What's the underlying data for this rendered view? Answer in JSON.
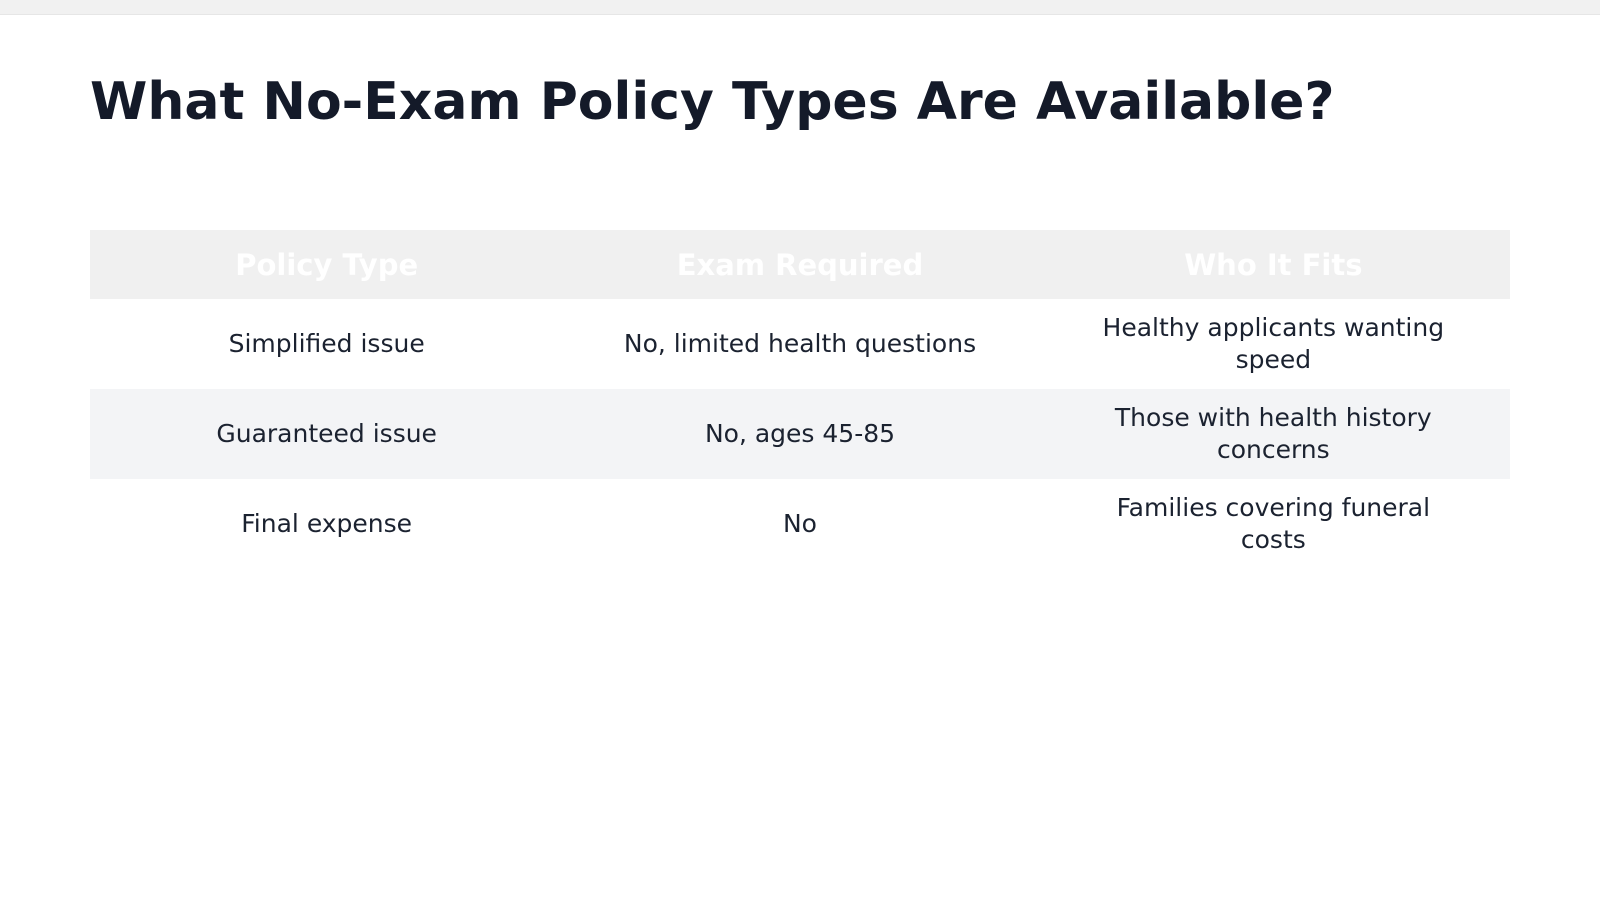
{
  "slide": {
    "title": "What No-Exam Policy Types Are Available?"
  },
  "table": {
    "headers": [
      "Policy Type",
      "Exam Required",
      "Who It Fits"
    ],
    "rows": [
      [
        "Simplified issue",
        "No, limited health questions",
        "Healthy applicants wanting speed"
      ],
      [
        "Guaranteed issue",
        "No, ages 45-85",
        "Those with health history concerns"
      ],
      [
        "Final expense",
        "No",
        "Families covering funeral costs"
      ]
    ],
    "colors": {
      "header_bg": "#f0f0f0",
      "header_text": "#ffffff",
      "alt_row_bg": "#f3f4f6",
      "body_text": "#1b2230",
      "title_text": "#141a29"
    }
  }
}
